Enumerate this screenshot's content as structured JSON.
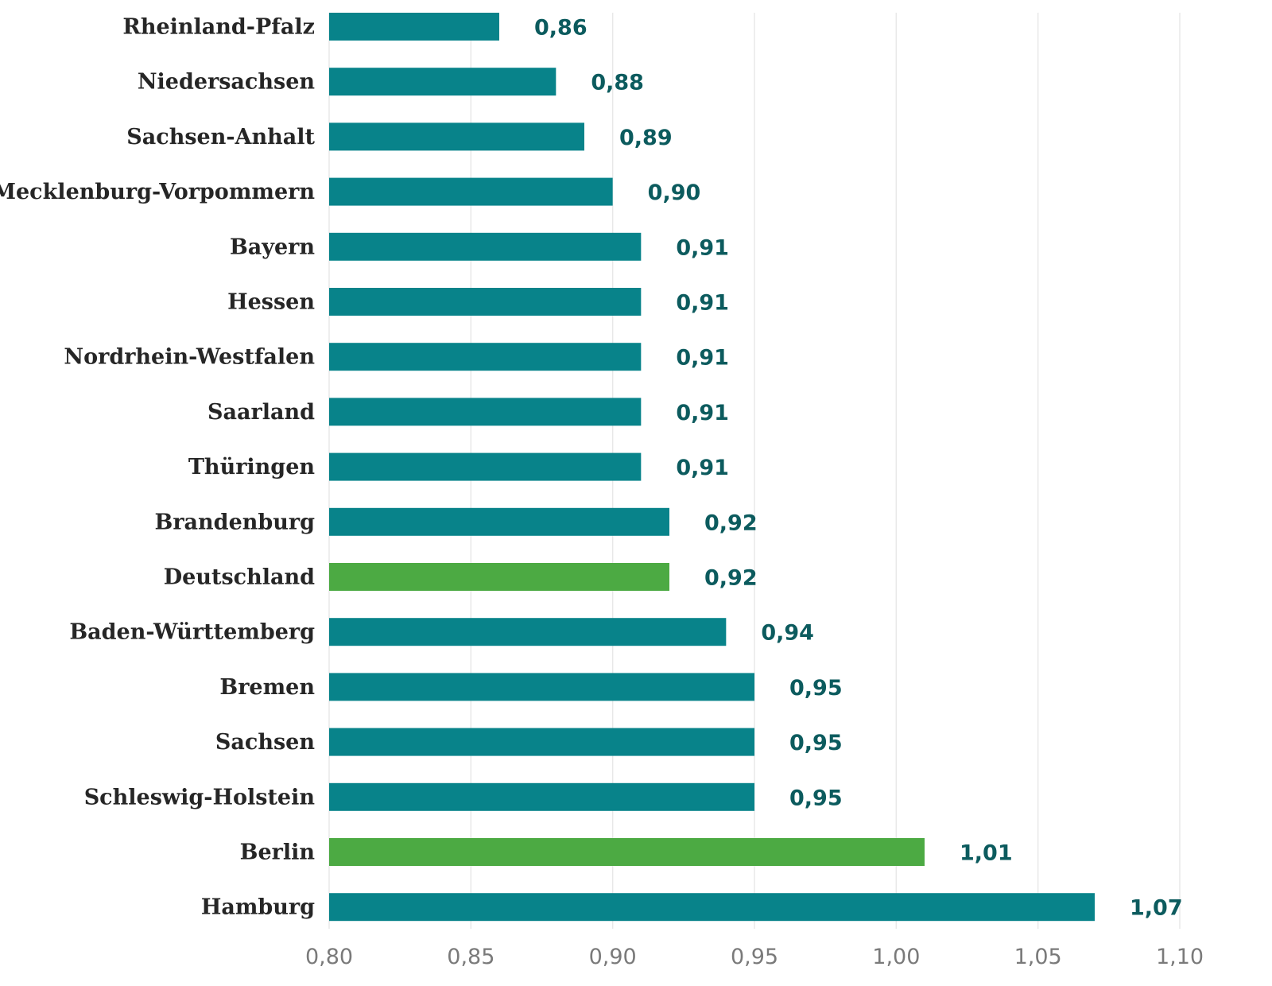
{
  "chart_data": {
    "type": "bar",
    "orientation": "horizontal",
    "title": "",
    "xlabel": "",
    "ylabel": "",
    "xlim": [
      0.8,
      1.1
    ],
    "xticks": [
      0.8,
      0.85,
      0.9,
      0.95,
      1.0,
      1.05,
      1.1
    ],
    "xtick_labels": [
      "0,80",
      "0,85",
      "0,90",
      "0,95",
      "1,00",
      "1,05",
      "1,10"
    ],
    "grid": "vertical",
    "legend": "none",
    "colors": {
      "default": "#08838a",
      "highlight": "#4caa43",
      "value_label": "#0c5b5e",
      "category_label": "#262626",
      "tick_label": "#7a7a7a",
      "grid": "#e8e8e8"
    },
    "categories": [
      "Rheinland-Pfalz",
      "Niedersachsen",
      "Sachsen-Anhalt",
      "Mecklenburg-Vorpommern",
      "Bayern",
      "Hessen",
      "Nordrhein-Westfalen",
      "Saarland",
      "Thüringen",
      "Brandenburg",
      "Deutschland",
      "Baden-Württemberg",
      "Bremen",
      "Sachsen",
      "Schleswig-Holstein",
      "Berlin",
      "Hamburg"
    ],
    "values": [
      0.86,
      0.88,
      0.89,
      0.9,
      0.91,
      0.91,
      0.91,
      0.91,
      0.91,
      0.92,
      0.92,
      0.94,
      0.95,
      0.95,
      0.95,
      1.01,
      1.07
    ],
    "value_labels": [
      "0,86",
      "0,88",
      "0,89",
      "0,90",
      "0,91",
      "0,91",
      "0,91",
      "0,91",
      "0,91",
      "0,92",
      "0,92",
      "0,94",
      "0,95",
      "0,95",
      "0,95",
      "1,01",
      "1,07"
    ],
    "highlighted": [
      "Deutschland",
      "Berlin"
    ]
  }
}
